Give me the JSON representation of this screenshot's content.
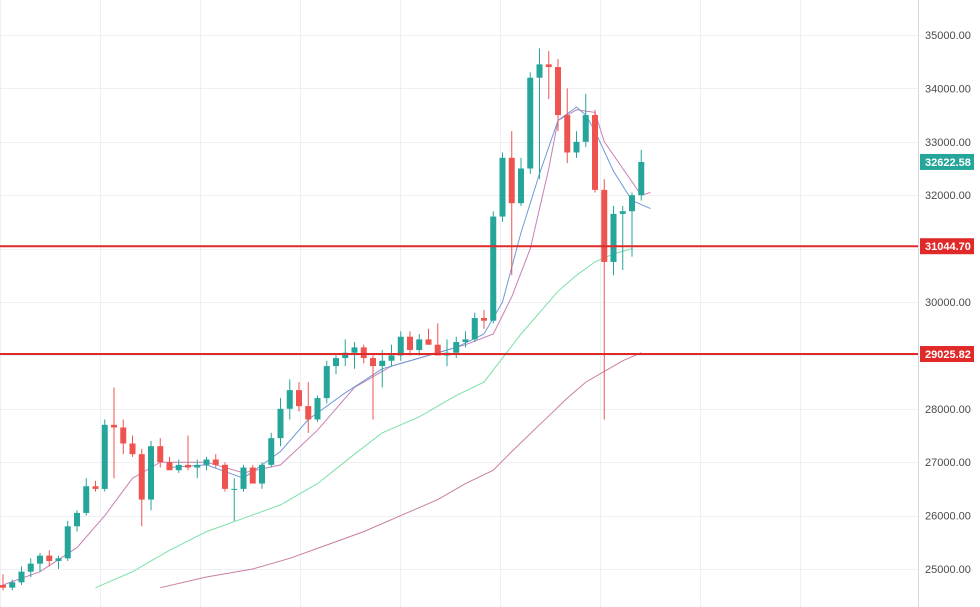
{
  "chart_data": {
    "type": "candlestick",
    "title": "",
    "xlabel": "",
    "ylabel": "",
    "ylim": [
      24650,
      35400
    ],
    "grid": true,
    "y_ticks": [
      "35000.00",
      "34000.00",
      "33000.00",
      "32000.00",
      "31000.00",
      "30000.00",
      "29000.00",
      "28000.00",
      "27000.00",
      "26000.00",
      "25000.00"
    ],
    "y_tick_values": [
      35000,
      34000,
      33000,
      32000,
      31000,
      30000,
      29000,
      28000,
      27000,
      26000,
      25000
    ],
    "colors": {
      "up": "#26a69a",
      "down": "#ef5350",
      "ma_fast": "#6f9bd6",
      "ma_mid": "#c87fb4",
      "ma_slow": "#7be0a6",
      "ma_long": "#c97da1",
      "level": "#e02a2a",
      "last_price": "#26a69a"
    },
    "last_price": {
      "value": 32622.58,
      "label": "32622.58"
    },
    "horizontal_levels": [
      {
        "value": 31044.7,
        "label": "31044.70"
      },
      {
        "value": 29025.82,
        "label": "29025.82"
      }
    ],
    "candles": [
      [
        24700,
        24900,
        24600,
        24650
      ],
      [
        24650,
        24800,
        24600,
        24750
      ],
      [
        24750,
        25050,
        24700,
        24950
      ],
      [
        24950,
        25200,
        24850,
        25100
      ],
      [
        25100,
        25300,
        24950,
        25250
      ],
      [
        25250,
        25350,
        25050,
        25150
      ],
      [
        25150,
        25250,
        25000,
        25200
      ],
      [
        25200,
        25900,
        25150,
        25800
      ],
      [
        25800,
        26100,
        25700,
        26050
      ],
      [
        26050,
        26700,
        26000,
        26550
      ],
      [
        26550,
        26650,
        26450,
        26500
      ],
      [
        26500,
        27800,
        26450,
        27700
      ],
      [
        27700,
        28400,
        26700,
        27650
      ],
      [
        27650,
        27800,
        27150,
        27350
      ],
      [
        27350,
        27500,
        27100,
        27150
      ],
      [
        27150,
        27250,
        25800,
        26300
      ],
      [
        26300,
        27400,
        26100,
        27300
      ],
      [
        27300,
        27450,
        26900,
        27000
      ],
      [
        27000,
        27100,
        26850,
        26850
      ],
      [
        26850,
        27050,
        26800,
        26950
      ],
      [
        26950,
        27500,
        26850,
        26900
      ],
      [
        26900,
        27050,
        26700,
        26950
      ],
      [
        26950,
        27100,
        26850,
        27050
      ],
      [
        27050,
        27150,
        26900,
        26950
      ],
      [
        26950,
        27000,
        26450,
        26500
      ],
      [
        26500,
        26700,
        25900,
        26500
      ],
      [
        26500,
        26950,
        26450,
        26900
      ],
      [
        26900,
        26950,
        26600,
        26600
      ],
      [
        26600,
        27000,
        26500,
        26950
      ],
      [
        26950,
        27550,
        26900,
        27450
      ],
      [
        27450,
        28200,
        27300,
        28000
      ],
      [
        28000,
        28550,
        27800,
        28350
      ],
      [
        28350,
        28500,
        27950,
        28050
      ],
      [
        28050,
        28500,
        27550,
        27800
      ],
      [
        27800,
        28250,
        27750,
        28200
      ],
      [
        28200,
        28900,
        28100,
        28800
      ],
      [
        28800,
        29000,
        28650,
        28950
      ],
      [
        28950,
        29300,
        28800,
        29050
      ],
      [
        29050,
        29250,
        28750,
        29150
      ],
      [
        29150,
        29200,
        28850,
        28950
      ],
      [
        28950,
        29000,
        27800,
        28800
      ],
      [
        28800,
        29100,
        28400,
        28900
      ],
      [
        28900,
        29200,
        28800,
        29000
      ],
      [
        29000,
        29450,
        28900,
        29350
      ],
      [
        29350,
        29450,
        29000,
        29100
      ],
      [
        29100,
        29400,
        29000,
        29300
      ],
      [
        29300,
        29500,
        29200,
        29200
      ],
      [
        29200,
        29600,
        29100,
        29000
      ],
      [
        29000,
        29300,
        28800,
        29050
      ],
      [
        29050,
        29350,
        28950,
        29250
      ],
      [
        29250,
        29450,
        29150,
        29300
      ],
      [
        29300,
        29800,
        29250,
        29700
      ],
      [
        29700,
        29850,
        29500,
        29650
      ],
      [
        29650,
        31700,
        29600,
        31600
      ],
      [
        31600,
        32800,
        31500,
        32700
      ],
      [
        32700,
        33200,
        30500,
        31850
      ],
      [
        31850,
        32700,
        31800,
        32500
      ],
      [
        32500,
        34300,
        32400,
        34200
      ],
      [
        34200,
        34750,
        32300,
        34450
      ],
      [
        34450,
        34700,
        33800,
        34400
      ],
      [
        34400,
        34550,
        33200,
        33500
      ],
      [
        33500,
        34000,
        32600,
        32800
      ],
      [
        32800,
        33200,
        32700,
        33000
      ],
      [
        33000,
        33900,
        32900,
        33500
      ],
      [
        33500,
        33600,
        32050,
        32100
      ],
      [
        32100,
        32300,
        27800,
        30750
      ],
      [
        30750,
        31800,
        30500,
        31650
      ],
      [
        31650,
        31800,
        30600,
        31700
      ],
      [
        31700,
        32050,
        30850,
        32000
      ],
      [
        32000,
        32850,
        31900,
        32622.58
      ]
    ],
    "ma_fast": [
      [
        18,
        26900
      ],
      [
        22,
        26950
      ],
      [
        26,
        26700
      ],
      [
        30,
        27200
      ],
      [
        33,
        27800
      ],
      [
        37,
        28300
      ],
      [
        41,
        28750
      ],
      [
        45,
        28950
      ],
      [
        49,
        29150
      ],
      [
        52,
        29400
      ],
      [
        54,
        30000
      ],
      [
        56,
        31300
      ],
      [
        58,
        32400
      ],
      [
        60,
        33400
      ],
      [
        62,
        33650
      ],
      [
        63,
        33500
      ],
      [
        64,
        33200
      ],
      [
        66,
        32450
      ],
      [
        68,
        31900
      ],
      [
        70,
        31750
      ]
    ],
    "ma_mid": [
      [
        0,
        24700
      ],
      [
        4,
        24950
      ],
      [
        8,
        25400
      ],
      [
        11,
        26000
      ],
      [
        14,
        26700
      ],
      [
        17,
        27000
      ],
      [
        22,
        27000
      ],
      [
        26,
        26800
      ],
      [
        30,
        26950
      ],
      [
        34,
        27600
      ],
      [
        38,
        28400
      ],
      [
        42,
        28800
      ],
      [
        46,
        29000
      ],
      [
        50,
        29200
      ],
      [
        53,
        29400
      ],
      [
        55,
        30100
      ],
      [
        57,
        31000
      ],
      [
        59,
        32500
      ],
      [
        60,
        33400
      ],
      [
        62,
        33600
      ],
      [
        64,
        33550
      ],
      [
        65,
        33000
      ],
      [
        67,
        32500
      ],
      [
        69,
        32000
      ],
      [
        70,
        32050
      ]
    ],
    "ma_slow": [
      [
        10,
        24650
      ],
      [
        14,
        24950
      ],
      [
        18,
        25350
      ],
      [
        22,
        25700
      ],
      [
        26,
        25950
      ],
      [
        30,
        26200
      ],
      [
        34,
        26600
      ],
      [
        38,
        27150
      ],
      [
        41,
        27550
      ],
      [
        45,
        27850
      ],
      [
        49,
        28250
      ],
      [
        52,
        28500
      ],
      [
        54,
        28950
      ],
      [
        56,
        29400
      ],
      [
        58,
        29800
      ],
      [
        60,
        30200
      ],
      [
        62,
        30500
      ],
      [
        64,
        30750
      ],
      [
        66,
        30900
      ],
      [
        68,
        31000
      ]
    ],
    "ma_long": [
      [
        17,
        24650
      ],
      [
        22,
        24850
      ],
      [
        27,
        25000
      ],
      [
        31,
        25200
      ],
      [
        35,
        25450
      ],
      [
        39,
        25700
      ],
      [
        43,
        26000
      ],
      [
        47,
        26300
      ],
      [
        50,
        26600
      ],
      [
        53,
        26850
      ],
      [
        55,
        27200
      ],
      [
        58,
        27700
      ],
      [
        61,
        28200
      ],
      [
        63,
        28500
      ],
      [
        65,
        28700
      ],
      [
        67,
        28900
      ],
      [
        69,
        29050
      ]
    ]
  }
}
